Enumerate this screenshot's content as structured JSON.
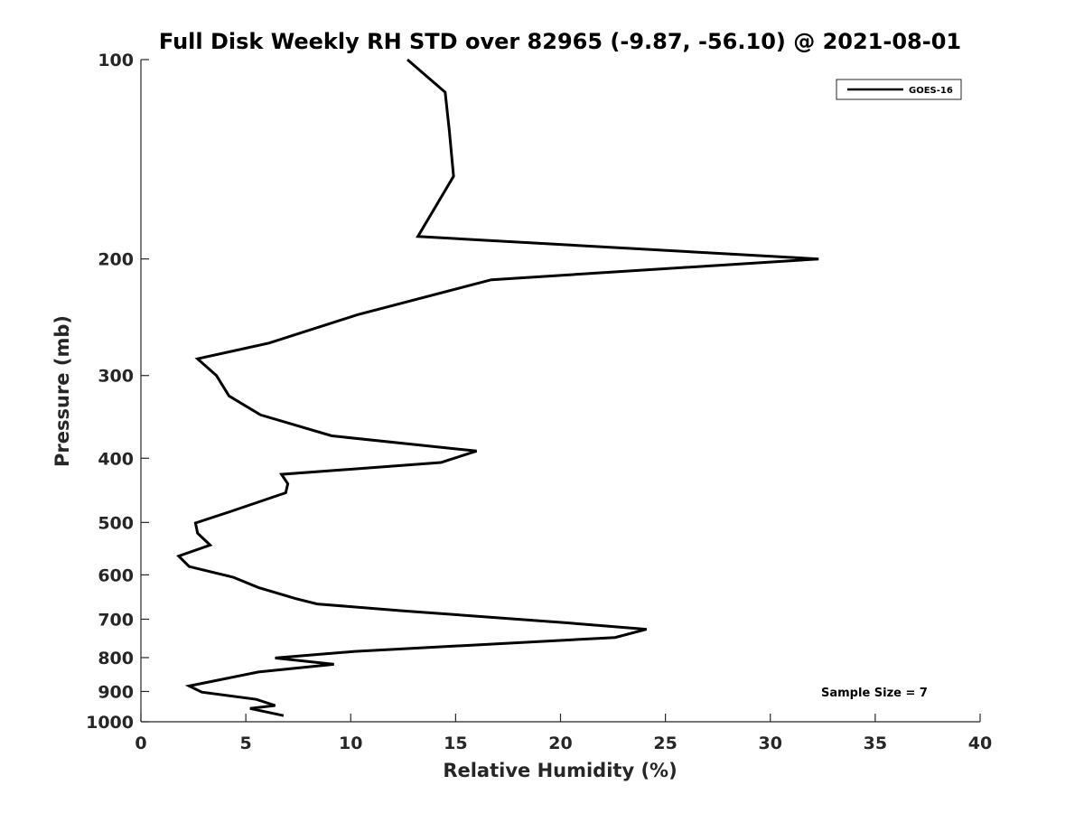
{
  "chart_data": {
    "type": "line",
    "title": "Full Disk Weekly RH STD over 82965 (-9.87, -56.10) @ 2021-08-01",
    "xlabel": "Relative Humidity (%)",
    "ylabel": "Pressure (mb)",
    "xlim": [
      0,
      40
    ],
    "ylim": [
      100,
      1000
    ],
    "y_scale": "log",
    "y_reversed": true,
    "x_ticks": [
      "0",
      "5",
      "10",
      "15",
      "20",
      "25",
      "30",
      "35",
      "40"
    ],
    "y_ticks": [
      "100",
      "200",
      "300",
      "400",
      "500",
      "600",
      "700",
      "800",
      "900",
      "1000"
    ],
    "grid": false,
    "legend_position": "top-right",
    "annotation": "Sample Size = 7",
    "series": [
      {
        "name": "GOES-16",
        "color": "#000000",
        "x": [
          12.7,
          14.5,
          14.7,
          14.9,
          13.2,
          32.3,
          16.7,
          10.3,
          6.1,
          2.7,
          3.6,
          4.2,
          5.7,
          9.1,
          16.0,
          14.3,
          6.7,
          7.0,
          6.9,
          4.3,
          2.6,
          2.7,
          3.3,
          1.8,
          2.3,
          4.4,
          5.6,
          7.4,
          8.4,
          12.5,
          20.1,
          24.1,
          22.6,
          10.2,
          6.4,
          9.2,
          5.6,
          2.3,
          2.9,
          5.5,
          6.4,
          5.2,
          6.8
        ],
        "y": [
          100,
          112,
          128,
          150,
          185,
          200,
          215,
          243,
          268,
          283,
          300,
          322,
          344,
          370,
          390,
          406,
          423,
          437,
          451,
          481,
          501,
          519,
          541,
          562,
          583,
          605,
          627,
          652,
          664,
          680,
          708,
          725,
          746,
          783,
          801,
          819,
          841,
          883,
          902,
          925,
          945,
          955,
          979
        ]
      }
    ]
  }
}
